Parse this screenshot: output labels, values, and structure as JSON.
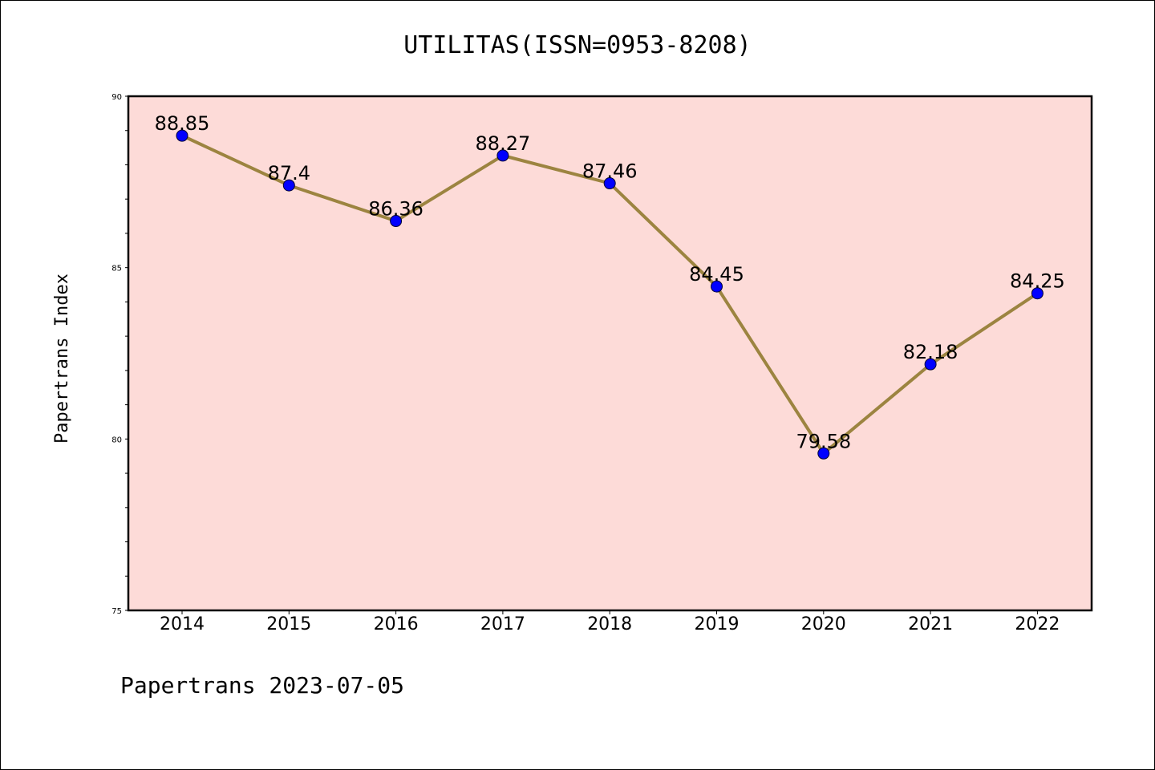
{
  "chart_data": {
    "type": "line",
    "title": "UTILITAS(ISSN=0953-8208)",
    "xlabel": "",
    "ylabel": "Papertrans Index",
    "footer": "Papertrans 2023-07-05",
    "categories": [
      "2014",
      "2015",
      "2016",
      "2017",
      "2018",
      "2019",
      "2020",
      "2021",
      "2022"
    ],
    "series": [
      {
        "values": [
          88.85,
          87.4,
          86.36,
          88.27,
          87.46,
          84.45,
          79.58,
          82.18,
          84.25
        ],
        "labels": [
          "88.85",
          "87.4",
          "86.36",
          "88.27",
          "87.46",
          "84.45",
          "79.58",
          "82.18",
          "84.25"
        ]
      }
    ],
    "ylim": [
      75,
      90
    ],
    "yticks": [
      "75",
      "80",
      "85",
      "90"
    ],
    "ytick_values": [
      75,
      80,
      85,
      90
    ],
    "minor_step": 1,
    "grid": false,
    "colors": {
      "plot_background": "#fddbd8",
      "line": "#9c8440",
      "marker": "#0000ff",
      "axis": "#000000"
    }
  }
}
